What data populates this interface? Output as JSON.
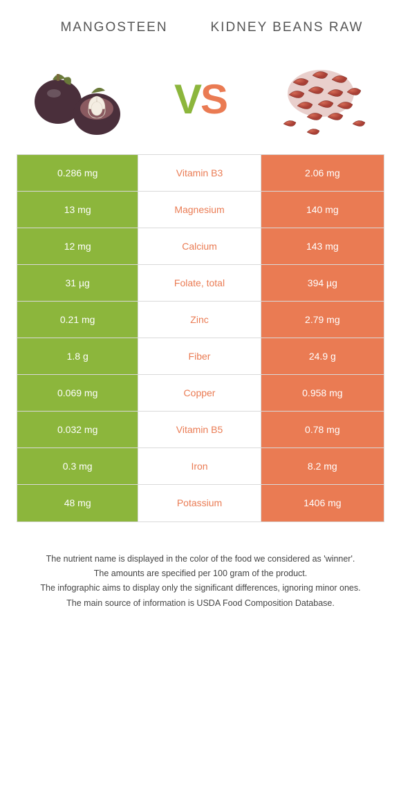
{
  "header": {
    "left_title": "Mangosteen",
    "right_title": "Kidney beans raw"
  },
  "vs": {
    "v": "V",
    "s": "S"
  },
  "colors": {
    "left_bg": "#8cb63c",
    "right_bg": "#ea7b53",
    "mid_text_winner_left": "#8cb63c",
    "mid_text_winner_right": "#ea7b53",
    "border": "#d9d9d9",
    "background": "#ffffff",
    "text": "#444444"
  },
  "table": {
    "left_bg": "#8cb63c",
    "right_bg": "#ea7b53",
    "rows": [
      {
        "left": "0.286 mg",
        "nutrient": "Vitamin B3",
        "right": "2.06 mg",
        "winner": "right"
      },
      {
        "left": "13 mg",
        "nutrient": "Magnesium",
        "right": "140 mg",
        "winner": "right"
      },
      {
        "left": "12 mg",
        "nutrient": "Calcium",
        "right": "143 mg",
        "winner": "right"
      },
      {
        "left": "31 µg",
        "nutrient": "Folate, total",
        "right": "394 µg",
        "winner": "right"
      },
      {
        "left": "0.21 mg",
        "nutrient": "Zinc",
        "right": "2.79 mg",
        "winner": "right"
      },
      {
        "left": "1.8 g",
        "nutrient": "Fiber",
        "right": "24.9 g",
        "winner": "right"
      },
      {
        "left": "0.069 mg",
        "nutrient": "Copper",
        "right": "0.958 mg",
        "winner": "right"
      },
      {
        "left": "0.032 mg",
        "nutrient": "Vitamin B5",
        "right": "0.78 mg",
        "winner": "right"
      },
      {
        "left": "0.3 mg",
        "nutrient": "Iron",
        "right": "8.2 mg",
        "winner": "right"
      },
      {
        "left": "48 mg",
        "nutrient": "Potassium",
        "right": "1406 mg",
        "winner": "right"
      }
    ]
  },
  "footnotes": [
    "The nutrient name is displayed in the color of the food we considered as 'winner'.",
    "The amounts are specified per 100 gram of the product.",
    "The infographic aims to display only the significant differences, ignoring minor ones.",
    "The main source of information is USDA Food Composition Database."
  ],
  "images": {
    "left": {
      "name": "mangosteen",
      "palette": {
        "skin": "#4a2f3b",
        "flesh": "#f4ede2",
        "leaf": "#6a7a3a",
        "stem": "#7a6a3c"
      }
    },
    "right": {
      "name": "kidney-beans",
      "palette": {
        "bean": "#a83f35",
        "bean_hi": "#d46a55",
        "shadow": "#7a2c24"
      }
    }
  }
}
